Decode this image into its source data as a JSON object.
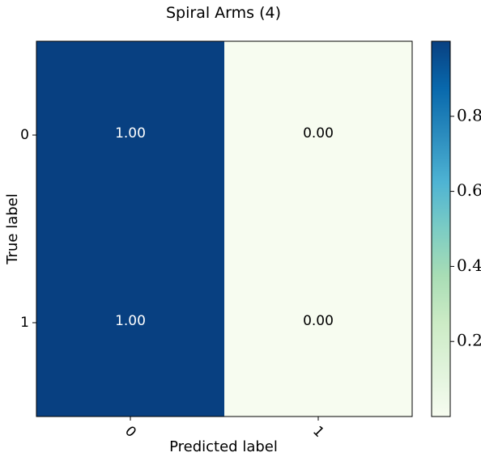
{
  "chart_data": {
    "type": "heatmap",
    "title": "Spiral Arms (4)",
    "xlabel": "Predicted label",
    "ylabel": "True label",
    "x_categories": [
      "0",
      "1"
    ],
    "y_categories": [
      "0",
      "1"
    ],
    "values": [
      [
        1.0,
        0.0
      ],
      [
        1.0,
        0.0
      ]
    ],
    "cell_labels": [
      [
        "1.00",
        "0.00"
      ],
      [
        "1.00",
        "0.00"
      ]
    ],
    "colormap": "GnBu",
    "colorbar": {
      "range": [
        0.0,
        1.0
      ],
      "ticks": [
        0.2,
        0.4,
        0.6,
        0.8
      ],
      "tick_labels": [
        "0.2",
        "0.4",
        "0.6",
        "0.8"
      ]
    },
    "colors": {
      "high": "#084081",
      "low": "#f7fcf0"
    }
  }
}
